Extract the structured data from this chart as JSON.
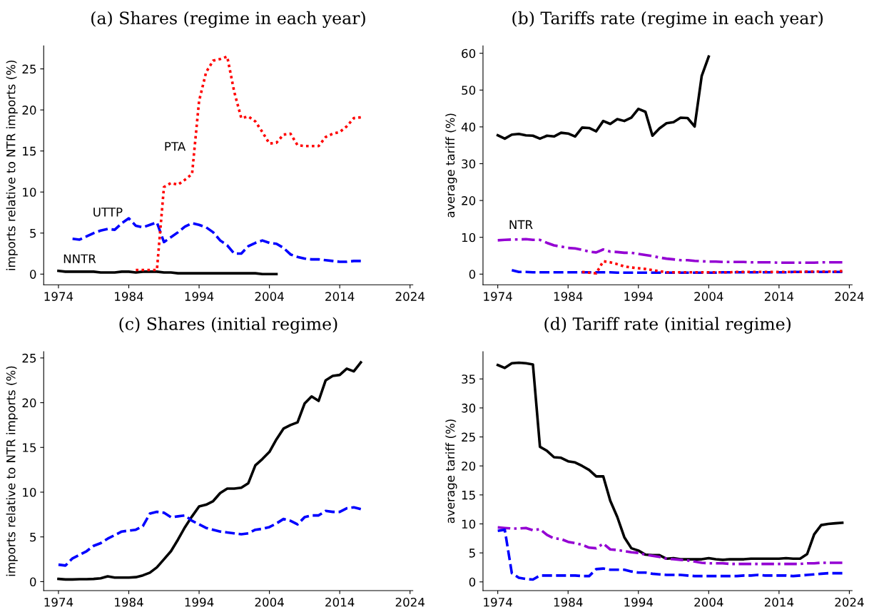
{
  "chart_data": [
    {
      "type": "line",
      "title": "(a) Shares (regime in each year)",
      "ylabel": "imports relative to NTR imports (%)",
      "x": [
        1974,
        1975,
        1976,
        1977,
        1978,
        1979,
        1980,
        1981,
        1982,
        1983,
        1984,
        1985,
        1986,
        1987,
        1988,
        1989,
        1990,
        1991,
        1992,
        1993,
        1994,
        1995,
        1996,
        1997,
        1998,
        1999,
        2000,
        2001,
        2002,
        2003,
        2004,
        2005,
        2006,
        2007,
        2008,
        2009,
        2010,
        2011,
        2012,
        2013,
        2014,
        2015,
        2016,
        2017
      ],
      "series": [
        {
          "name": "NNTR",
          "color": "#000000",
          "line_style": "solid",
          "values": [
            0.4,
            0.3,
            0.3,
            0.3,
            0.3,
            0.3,
            0.2,
            0.2,
            0.2,
            0.3,
            0.3,
            0.2,
            0.3,
            0.3,
            0.3,
            0.2,
            0.2,
            0.1,
            0.1,
            0.1,
            0.1,
            0.1,
            0.1,
            0.1,
            0.1,
            0.1,
            0.1,
            0.1,
            0.1,
            0.0,
            0.0,
            0.0,
            null,
            null,
            null,
            null,
            null,
            null,
            null,
            null,
            null,
            null,
            null,
            null
          ]
        },
        {
          "name": "UTTP",
          "color": "#0000ff",
          "line_style": "dashed",
          "values": [
            null,
            null,
            4.3,
            4.2,
            4.6,
            5.0,
            5.3,
            5.5,
            5.4,
            6.2,
            6.8,
            5.9,
            5.7,
            6.0,
            6.3,
            3.9,
            4.5,
            5.1,
            5.8,
            6.2,
            6.0,
            5.7,
            5.1,
            4.1,
            3.5,
            2.5,
            2.5,
            3.4,
            3.8,
            4.1,
            3.8,
            3.7,
            3.2,
            2.4,
            2.1,
            1.9,
            1.8,
            1.8,
            1.7,
            1.6,
            1.5,
            1.5,
            1.6,
            1.6
          ]
        },
        {
          "name": "PTA",
          "color": "#ff0000",
          "line_style": "dotted",
          "values": [
            null,
            null,
            null,
            null,
            null,
            null,
            null,
            null,
            null,
            null,
            null,
            0.5,
            0.5,
            0.5,
            0.5,
            10.6,
            11.1,
            10.9,
            11.5,
            12.2,
            21.1,
            24.6,
            26.0,
            26.2,
            26.5,
            22.2,
            19.0,
            19.2,
            18.6,
            17.3,
            15.9,
            16.0,
            17.0,
            17.1,
            15.7,
            15.6,
            15.6,
            15.6,
            16.7,
            17.1,
            17.3,
            18.0,
            19.0,
            19.1
          ]
        }
      ],
      "xlim": [
        1971.9,
        2024.4
      ],
      "ylim": [
        -1.3,
        27.8
      ],
      "xticks": [
        1974,
        1984,
        1994,
        2004,
        2014,
        2024
      ],
      "yticks": [
        0,
        5,
        10,
        15,
        20,
        25
      ]
    },
    {
      "type": "line",
      "title": "(b) Tariffs rate (regime in each year)",
      "ylabel": "average tariff (%)",
      "x": [
        1974,
        1975,
        1976,
        1977,
        1978,
        1979,
        1980,
        1981,
        1982,
        1983,
        1984,
        1985,
        1986,
        1987,
        1988,
        1989,
        1990,
        1991,
        1992,
        1993,
        1994,
        1995,
        1996,
        1997,
        1998,
        1999,
        2000,
        2001,
        2002,
        2003,
        2004,
        2005,
        2006,
        2007,
        2008,
        2009,
        2010,
        2011,
        2012,
        2013,
        2014,
        2015,
        2016,
        2017,
        2018,
        2019,
        2020,
        2021,
        2022,
        2023
      ],
      "series": [
        {
          "color": "#000000",
          "line_style": "solid",
          "values": [
            37.7,
            36.8,
            37.9,
            38.1,
            37.7,
            37.6,
            36.8,
            37.6,
            37.4,
            38.4,
            38.2,
            37.4,
            39.8,
            39.7,
            38.8,
            41.6,
            40.8,
            42.1,
            41.6,
            42.5,
            44.9,
            44.1,
            37.6,
            39.6,
            41.0,
            41.3,
            42.5,
            42.4,
            40.1,
            53.8,
            59.1,
            null,
            null,
            null,
            null,
            null,
            null,
            null,
            null,
            null,
            null,
            null,
            null,
            null,
            null,
            null,
            null,
            null,
            null,
            null
          ]
        },
        {
          "name": "NTR",
          "color": "#9400d3",
          "line_style": "dashdot",
          "values": [
            9.2,
            9.3,
            9.4,
            9.4,
            9.5,
            9.3,
            9.3,
            8.5,
            7.8,
            7.5,
            7.1,
            7.0,
            6.6,
            6.1,
            5.9,
            6.7,
            6.1,
            6.0,
            5.8,
            5.8,
            5.5,
            5.2,
            4.9,
            4.5,
            4.2,
            4.0,
            3.8,
            3.8,
            3.6,
            3.5,
            3.4,
            3.4,
            3.3,
            3.3,
            3.3,
            3.3,
            3.2,
            3.2,
            3.2,
            3.2,
            3.1,
            3.1,
            3.1,
            3.1,
            3.1,
            3.1,
            3.2,
            3.2,
            3.2,
            3.2
          ]
        },
        {
          "color": "#0000ff",
          "line_style": "dashed",
          "values": [
            null,
            null,
            1.1,
            0.6,
            0.6,
            0.5,
            0.5,
            0.5,
            0.5,
            0.5,
            0.5,
            0.5,
            0.5,
            0.5,
            0.5,
            0.5,
            0.5,
            0.4,
            0.4,
            0.4,
            0.4,
            0.4,
            0.4,
            0.4,
            0.4,
            0.4,
            0.4,
            0.4,
            0.4,
            0.4,
            0.4,
            0.4,
            0.5,
            0.5,
            0.5,
            0.5,
            0.5,
            0.5,
            0.5,
            0.5,
            0.5,
            0.5,
            0.6,
            0.6,
            0.6,
            0.6,
            0.6,
            0.6,
            0.6,
            0.6
          ]
        },
        {
          "color": "#ff0000",
          "line_style": "dotted",
          "values": [
            null,
            null,
            null,
            null,
            null,
            null,
            null,
            null,
            null,
            null,
            null,
            null,
            0.6,
            0.4,
            0.2,
            3.5,
            3.2,
            2.7,
            2.1,
            1.8,
            1.6,
            1.4,
            1.1,
            0.8,
            0.5,
            0.5,
            0.5,
            0.5,
            0.5,
            0.5,
            0.5,
            0.5,
            0.5,
            0.5,
            0.6,
            0.6,
            0.6,
            0.6,
            0.6,
            0.6,
            0.6,
            0.6,
            0.6,
            0.6,
            0.7,
            0.7,
            0.7,
            0.7,
            0.7,
            0.8
          ]
        }
      ],
      "xlim": [
        1971.9,
        2024.4
      ],
      "ylim": [
        -2.9,
        62
      ],
      "xticks": [
        1974,
        1984,
        1994,
        2004,
        2014,
        2024
      ],
      "yticks": [
        0,
        10,
        20,
        30,
        40,
        50,
        60
      ]
    },
    {
      "type": "line",
      "title": "(c) Shares (initial regime)",
      "ylabel": "imports relative to NTR imports (%)",
      "x": [
        1974,
        1975,
        1976,
        1977,
        1978,
        1979,
        1980,
        1981,
        1982,
        1983,
        1984,
        1985,
        1986,
        1987,
        1988,
        1989,
        1990,
        1991,
        1992,
        1993,
        1994,
        1995,
        1996,
        1997,
        1998,
        1999,
        2000,
        2001,
        2002,
        2003,
        2004,
        2005,
        2006,
        2007,
        2008,
        2009,
        2010,
        2011,
        2012,
        2013,
        2014,
        2015,
        2016,
        2017
      ],
      "series": [
        {
          "color": "#000000",
          "line_style": "solid",
          "values": [
            0.3,
            0.24,
            0.24,
            0.27,
            0.27,
            0.3,
            0.37,
            0.59,
            0.45,
            0.45,
            0.45,
            0.5,
            0.7,
            1.0,
            1.6,
            2.5,
            3.4,
            4.7,
            6.1,
            7.3,
            8.4,
            8.6,
            9.0,
            9.9,
            10.4,
            10.4,
            10.5,
            11.0,
            13.0,
            13.7,
            14.5,
            15.9,
            17.1,
            17.5,
            17.8,
            19.9,
            20.7,
            20.2,
            22.5,
            23.0,
            23.1,
            23.8,
            23.5,
            24.5
          ]
        },
        {
          "color": "#0000ff",
          "line_style": "dashed",
          "values": [
            1.9,
            1.8,
            2.6,
            3.0,
            3.4,
            4.0,
            4.3,
            4.8,
            5.2,
            5.6,
            5.7,
            5.8,
            6.2,
            7.6,
            7.8,
            7.7,
            7.2,
            7.3,
            7.4,
            6.8,
            6.4,
            6.0,
            5.8,
            5.6,
            5.5,
            5.4,
            5.3,
            5.4,
            5.8,
            5.9,
            6.1,
            6.5,
            7.0,
            6.8,
            6.4,
            7.2,
            7.4,
            7.4,
            7.9,
            7.8,
            7.8,
            8.2,
            8.3,
            8.1
          ]
        }
      ],
      "xlim": [
        1971.9,
        2024.4
      ],
      "ylim": [
        -1.0,
        25.7
      ],
      "xticks": [
        1974,
        1984,
        1994,
        2004,
        2014,
        2024
      ],
      "yticks": [
        0,
        5,
        10,
        15,
        20,
        25
      ]
    },
    {
      "type": "line",
      "title": "(d) Tariff rate (initial regime)",
      "ylabel": "average tariff (%)",
      "x": [
        1974,
        1975,
        1976,
        1977,
        1978,
        1979,
        1980,
        1981,
        1982,
        1983,
        1984,
        1985,
        1986,
        1987,
        1988,
        1989,
        1990,
        1991,
        1992,
        1993,
        1994,
        1995,
        1996,
        1997,
        1998,
        1999,
        2000,
        2001,
        2002,
        2003,
        2004,
        2005,
        2006,
        2007,
        2008,
        2009,
        2010,
        2011,
        2012,
        2013,
        2014,
        2015,
        2016,
        2017,
        2018,
        2019,
        2020,
        2021,
        2022,
        2023
      ],
      "series": [
        {
          "color": "#000000",
          "line_style": "solid",
          "values": [
            37.4,
            36.9,
            37.7,
            37.8,
            37.7,
            37.5,
            23.3,
            22.6,
            21.5,
            21.4,
            20.8,
            20.6,
            20.0,
            19.3,
            18.2,
            18.2,
            14.0,
            11.2,
            7.7,
            5.8,
            5.4,
            4.7,
            4.6,
            4.6,
            4.0,
            4.1,
            3.9,
            3.9,
            3.9,
            3.9,
            4.1,
            3.9,
            3.8,
            3.9,
            3.9,
            3.9,
            4.0,
            4.0,
            4.0,
            4.0,
            4.0,
            4.1,
            4.0,
            4.0,
            4.8,
            8.2,
            9.8,
            10.0,
            10.1,
            10.2
          ]
        },
        {
          "color": "#9400d3",
          "line_style": "dashdot",
          "values": [
            9.4,
            9.3,
            9.2,
            9.2,
            9.3,
            8.9,
            9.1,
            8.1,
            7.5,
            7.4,
            6.9,
            6.7,
            6.4,
            5.9,
            5.8,
            6.6,
            5.6,
            5.5,
            5.3,
            5.1,
            5.0,
            4.7,
            4.5,
            4.3,
            4.0,
            3.9,
            3.8,
            3.7,
            3.5,
            3.3,
            3.2,
            3.2,
            3.2,
            3.1,
            3.1,
            3.1,
            3.1,
            3.1,
            3.1,
            3.1,
            3.1,
            3.1,
            3.1,
            3.1,
            3.2,
            3.2,
            3.3,
            3.3,
            3.3,
            3.3
          ]
        },
        {
          "color": "#0000ff",
          "line_style": "dashed",
          "values": [
            8.8,
            9.0,
            1.5,
            0.7,
            0.5,
            0.4,
            1.1,
            1.1,
            1.1,
            1.1,
            1.1,
            1.1,
            1.0,
            1.0,
            2.2,
            2.3,
            2.1,
            2.1,
            2.1,
            1.8,
            1.6,
            1.6,
            1.4,
            1.3,
            1.2,
            1.2,
            1.2,
            1.1,
            1.0,
            1.0,
            1.0,
            1.0,
            1.0,
            1.0,
            1.0,
            1.1,
            1.1,
            1.2,
            1.1,
            1.1,
            1.1,
            1.1,
            1.0,
            1.1,
            1.2,
            1.3,
            1.4,
            1.5,
            1.5,
            1.5
          ]
        }
      ],
      "xlim": [
        1971.9,
        2024.4
      ],
      "ylim": [
        -1.5,
        39.7
      ],
      "xticks": [
        1974,
        1984,
        1994,
        2004,
        2014,
        2024
      ],
      "yticks": [
        0,
        5,
        10,
        15,
        20,
        25,
        30,
        35
      ]
    }
  ]
}
